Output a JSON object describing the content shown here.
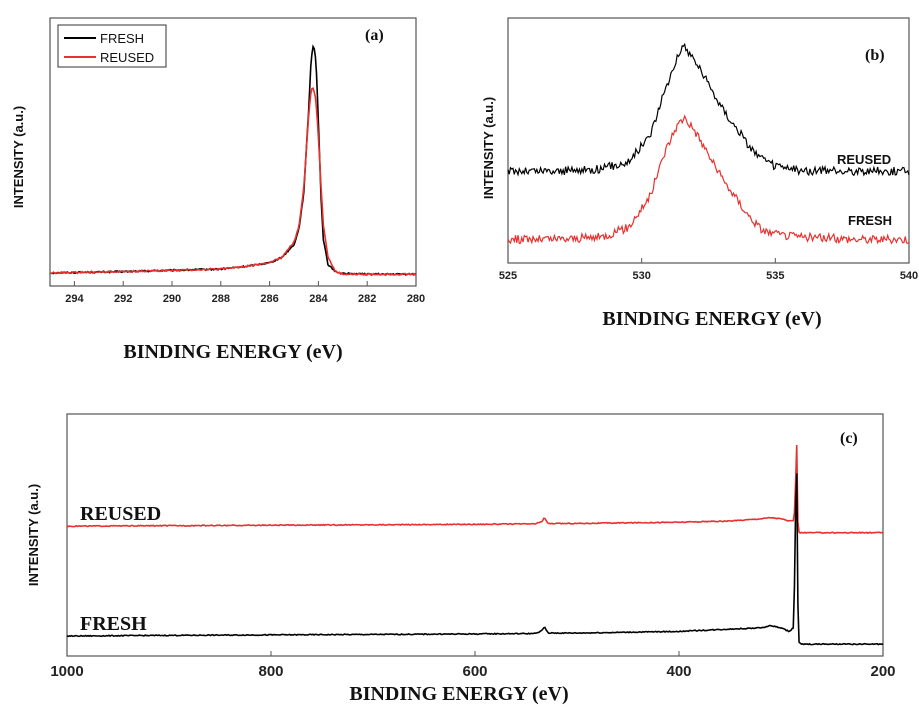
{
  "chart_data": [
    {
      "panel_label": "(a)",
      "type": "line",
      "xlabel": "BINDING ENERGY (eV)",
      "ylabel": "INTENSITY (a.u.)",
      "xlim": [
        295,
        280
      ],
      "x_reversed": true,
      "ylim": [
        0,
        1
      ],
      "xticks": [
        294,
        292,
        290,
        288,
        286,
        284,
        282,
        280
      ],
      "legend_position": "top-left",
      "series": [
        {
          "name": "FRESH",
          "color": "#000000",
          "peak_x": 284.2,
          "peak_y": 0.92,
          "x": [
            295,
            292,
            290,
            288,
            287,
            286,
            285.5,
            285,
            284.8,
            284.6,
            284.4,
            284.3,
            284.2,
            284.1,
            284.0,
            283.9,
            283.8,
            283.6,
            283.3,
            283.0,
            282,
            280
          ],
          "y": [
            0.03,
            0.035,
            0.04,
            0.045,
            0.055,
            0.07,
            0.09,
            0.14,
            0.2,
            0.34,
            0.66,
            0.86,
            0.92,
            0.86,
            0.62,
            0.34,
            0.16,
            0.06,
            0.035,
            0.028,
            0.025,
            0.025
          ]
        },
        {
          "name": "REUSED",
          "color": "#e8312e",
          "peak_x": 284.25,
          "peak_y": 0.75,
          "x": [
            295,
            292,
            290,
            288,
            287,
            286,
            285.5,
            285,
            284.8,
            284.6,
            284.4,
            284.3,
            284.2,
            284.1,
            284.0,
            283.9,
            283.8,
            283.6,
            283.3,
            283.0,
            282,
            280
          ],
          "y": [
            0.03,
            0.035,
            0.04,
            0.045,
            0.055,
            0.07,
            0.09,
            0.15,
            0.21,
            0.36,
            0.64,
            0.74,
            0.75,
            0.7,
            0.56,
            0.38,
            0.22,
            0.09,
            0.035,
            0.025,
            0.025,
            0.025
          ]
        }
      ]
    },
    {
      "panel_label": "(b)",
      "type": "line",
      "xlabel": "BINDING ENERGY (eV)",
      "ylabel": "INTENSITY (a.u.)",
      "xlim": [
        525,
        540
      ],
      "ylim": [
        0,
        1
      ],
      "xticks": [
        525,
        530,
        535,
        540
      ],
      "series_labels_on_plot": true,
      "series": [
        {
          "name": "REUSED",
          "color": "#000000",
          "baseline": 0.37,
          "peak_x": 531.6,
          "peak_y": 0.9,
          "x": [
            525,
            527,
            528.5,
            529.5,
            530.3,
            530.9,
            531.3,
            531.6,
            532.0,
            532.5,
            533.0,
            533.5,
            534.0,
            534.5,
            535.0,
            536,
            538,
            540
          ],
          "y": [
            0.37,
            0.37,
            0.38,
            0.41,
            0.52,
            0.72,
            0.85,
            0.9,
            0.84,
            0.74,
            0.64,
            0.56,
            0.48,
            0.42,
            0.39,
            0.37,
            0.37,
            0.37
          ]
        },
        {
          "name": "FRESH",
          "color": "#e8312e",
          "baseline": 0.08,
          "peak_x": 531.6,
          "peak_y": 0.6,
          "x": [
            525,
            527,
            528.5,
            529.5,
            530.3,
            530.9,
            531.3,
            531.6,
            532.0,
            532.5,
            533.0,
            533.5,
            534.0,
            534.5,
            535.0,
            536,
            538,
            540
          ],
          "y": [
            0.08,
            0.08,
            0.09,
            0.13,
            0.26,
            0.46,
            0.56,
            0.6,
            0.54,
            0.44,
            0.34,
            0.26,
            0.18,
            0.12,
            0.1,
            0.09,
            0.08,
            0.08
          ]
        }
      ]
    },
    {
      "panel_label": "(c)",
      "type": "line",
      "xlabel": "BINDING ENERGY (eV)",
      "ylabel": "INTENSITY (a.u.)",
      "xlim": [
        1000,
        200
      ],
      "x_reversed": true,
      "ylim": [
        0,
        1
      ],
      "xticks": [
        1000,
        800,
        600,
        400,
        200
      ],
      "series_labels_on_plot": true,
      "series": [
        {
          "name": "REUSED",
          "color": "#e8312e",
          "baseline": 0.54,
          "x": [
            1000,
            900,
            800,
            700,
            600,
            540,
            534,
            532,
            530,
            528,
            500,
            400,
            350,
            320,
            310,
            300,
            292,
            288,
            286,
            285.5,
            285,
            284.5,
            284,
            283,
            282,
            280,
            270,
            250,
            200
          ],
          "y": [
            0.538,
            0.54,
            0.542,
            0.544,
            0.546,
            0.548,
            0.56,
            0.575,
            0.56,
            0.549,
            0.55,
            0.555,
            0.56,
            0.57,
            0.575,
            0.57,
            0.56,
            0.56,
            0.62,
            0.8,
            0.94,
            0.88,
            0.6,
            0.52,
            0.51,
            0.51,
            0.51,
            0.51,
            0.51
          ]
        },
        {
          "name": "FRESH",
          "color": "#000000",
          "baseline": 0.065,
          "x": [
            1000,
            900,
            800,
            700,
            600,
            540,
            534,
            532,
            530,
            528,
            500,
            400,
            350,
            320,
            310,
            300,
            292,
            288,
            286,
            285.5,
            285,
            284.5,
            284,
            283,
            282,
            280,
            270,
            250,
            200
          ],
          "y": [
            0.065,
            0.068,
            0.07,
            0.072,
            0.074,
            0.076,
            0.09,
            0.105,
            0.09,
            0.078,
            0.078,
            0.085,
            0.095,
            0.1,
            0.11,
            0.1,
            0.085,
            0.1,
            0.4,
            0.75,
            0.86,
            0.75,
            0.4,
            0.05,
            0.035,
            0.03,
            0.03,
            0.03,
            0.03
          ]
        }
      ]
    }
  ]
}
